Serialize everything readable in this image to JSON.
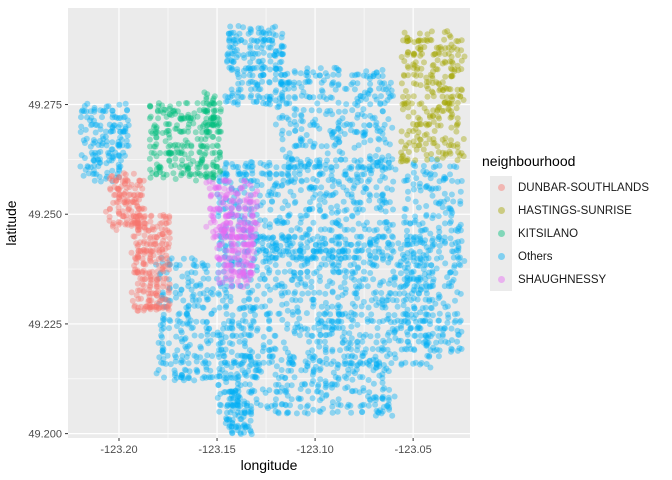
{
  "chart_data": {
    "type": "scatter",
    "title": "",
    "xlabel": "longitude",
    "ylabel": "latitude",
    "xlim": [
      -123.226,
      -123.021
    ],
    "ylim": [
      49.199,
      49.297
    ],
    "x_ticks": [
      -123.2,
      -123.15,
      -123.1,
      -123.05
    ],
    "x_tick_labels": [
      "-123.20",
      "-123.15",
      "-123.10",
      "-123.05"
    ],
    "y_ticks": [
      49.2,
      49.225,
      49.25,
      49.275
    ],
    "y_tick_labels": [
      "49.200",
      "49.225",
      "49.250",
      "49.275"
    ],
    "grid": true,
    "point_alpha": 0.4,
    "legend": {
      "title": "neighbourhood",
      "placement": "right",
      "entries": [
        {
          "label": "DUNBAR-SOUTHLANDS",
          "color": "#F8766D"
        },
        {
          "label": "HASTINGS-SUNRISE",
          "color": "#A3A500"
        },
        {
          "label": "KITSILANO",
          "color": "#00BF7D"
        },
        {
          "label": "Others",
          "color": "#00B0F6"
        },
        {
          "label": "SHAUGHNESSY",
          "color": "#E76BF3"
        }
      ]
    },
    "series": [
      {
        "name": "DUNBAR-SOUTHLANDS",
        "color": "#F8766D",
        "clusters": [
          {
            "x": [
              -123.205,
              -123.187
            ],
            "y": [
              49.247,
              49.259
            ],
            "n": 140
          },
          {
            "x": [
              -123.193,
              -123.174
            ],
            "y": [
              49.228,
              49.25
            ],
            "n": 240
          }
        ]
      },
      {
        "name": "HASTINGS-SUNRISE",
        "color": "#A3A500",
        "clusters": [
          {
            "x": [
              -123.056,
              -123.025
            ],
            "y": [
              49.262,
              49.292
            ],
            "n": 280
          }
        ]
      },
      {
        "name": "KITSILANO",
        "color": "#00BF7D",
        "clusters": [
          {
            "x": [
              -123.185,
              -123.148
            ],
            "y": [
              49.258,
              49.275
            ],
            "n": 260
          },
          {
            "x": [
              -123.157,
              -123.151
            ],
            "y": [
              49.27,
              49.278
            ],
            "n": 30
          }
        ]
      },
      {
        "name": "Others",
        "color": "#00B0F6",
        "clusters": [
          {
            "x": [
              -123.22,
              -123.195
            ],
            "y": [
              49.258,
              49.275
            ],
            "n": 160
          },
          {
            "x": [
              -123.145,
              -123.115
            ],
            "y": [
              49.275,
              49.293
            ],
            "n": 220
          },
          {
            "x": [
              -123.12,
              -123.06
            ],
            "y": [
              49.26,
              49.283
            ],
            "n": 320
          },
          {
            "x": [
              -123.15,
              -123.06
            ],
            "y": [
              49.24,
              49.262
            ],
            "n": 520
          },
          {
            "x": [
              -123.18,
              -123.13
            ],
            "y": [
              49.212,
              49.24
            ],
            "n": 380
          },
          {
            "x": [
              -123.13,
              -123.04
            ],
            "y": [
              49.215,
              49.245
            ],
            "n": 640
          },
          {
            "x": [
              -123.055,
              -123.025
            ],
            "y": [
              49.218,
              49.262
            ],
            "n": 300
          },
          {
            "x": [
              -123.15,
              -123.06
            ],
            "y": [
              49.204,
              49.218
            ],
            "n": 260
          },
          {
            "x": [
              -123.145,
              -123.132
            ],
            "y": [
              49.2,
              49.21
            ],
            "n": 90
          }
        ]
      },
      {
        "name": "SHAUGHNESSY",
        "color": "#E76BF3",
        "clusters": [
          {
            "x": [
              -123.155,
              -123.13
            ],
            "y": [
              49.244,
              49.258
            ],
            "n": 150
          },
          {
            "x": [
              -123.15,
              -123.131
            ],
            "y": [
              49.234,
              49.248
            ],
            "n": 150
          }
        ]
      }
    ]
  }
}
